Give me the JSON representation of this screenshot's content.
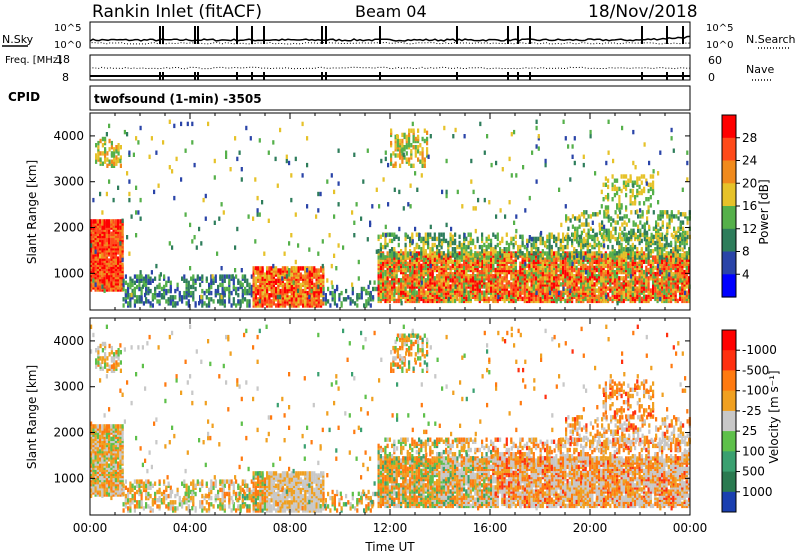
{
  "header": {
    "station": "Rankin Inlet (fitACF)",
    "beam": "Beam 04",
    "date": "18/Nov/2018",
    "program": "twofsound (1-min) -3505"
  },
  "chart_data": [
    {
      "type": "line",
      "panel": "noise",
      "ylabel_left": "N.Sky",
      "ylabel_right": "N.Search",
      "y_ticks_left": [
        "10^5",
        "10^0"
      ],
      "y_ticks_right": [
        "10^5",
        "10^0"
      ]
    },
    {
      "type": "line",
      "panel": "frequency",
      "ylabel_left": "Freq. [MHz]",
      "ylabel_right": "Nave",
      "y_ticks_left": [
        "18",
        "8"
      ],
      "y_ticks_right": [
        "60",
        "0"
      ],
      "cpid_label": "CPID"
    },
    {
      "type": "heatmap",
      "panel": "power",
      "ylabel": "Slant Range [km]",
      "y_ticks": [
        1000,
        2000,
        3000,
        4000
      ],
      "ylim": [
        200,
        4500
      ],
      "x_ticks": [
        "00:00",
        "04:00",
        "08:00",
        "12:00",
        "16:00",
        "20:00",
        "00:00"
      ],
      "colorbar": {
        "label": "Power [dB]",
        "ticks": [
          "4",
          "8",
          "12",
          "16",
          "20",
          "24",
          "28"
        ],
        "colors": [
          "#0000ff",
          "#2a44a8",
          "#2e7d5b",
          "#55b04a",
          "#e6c229",
          "#f08a1c",
          "#ff4a1a",
          "#ff0000"
        ]
      }
    },
    {
      "type": "heatmap",
      "panel": "velocity",
      "ylabel": "Slant Range [km]",
      "y_ticks": [
        1000,
        2000,
        3000,
        4000
      ],
      "ylim": [
        200,
        4500
      ],
      "x_ticks": [
        "00:00",
        "04:00",
        "08:00",
        "12:00",
        "16:00",
        "20:00",
        "00:00"
      ],
      "xlabel": "Time UT",
      "colorbar": {
        "label": "Velocity [m s⁻¹]",
        "ticks": [
          "1000",
          "500",
          "100",
          "25",
          "-25",
          "-100",
          "-500",
          "-1000"
        ],
        "colors": [
          "#1a3fb0",
          "#2a7a50",
          "#3aa070",
          "#5ec04a",
          "#c8c8c8",
          "#f0a020",
          "#ff7a10",
          "#ff3010",
          "#ff0000"
        ]
      }
    }
  ]
}
